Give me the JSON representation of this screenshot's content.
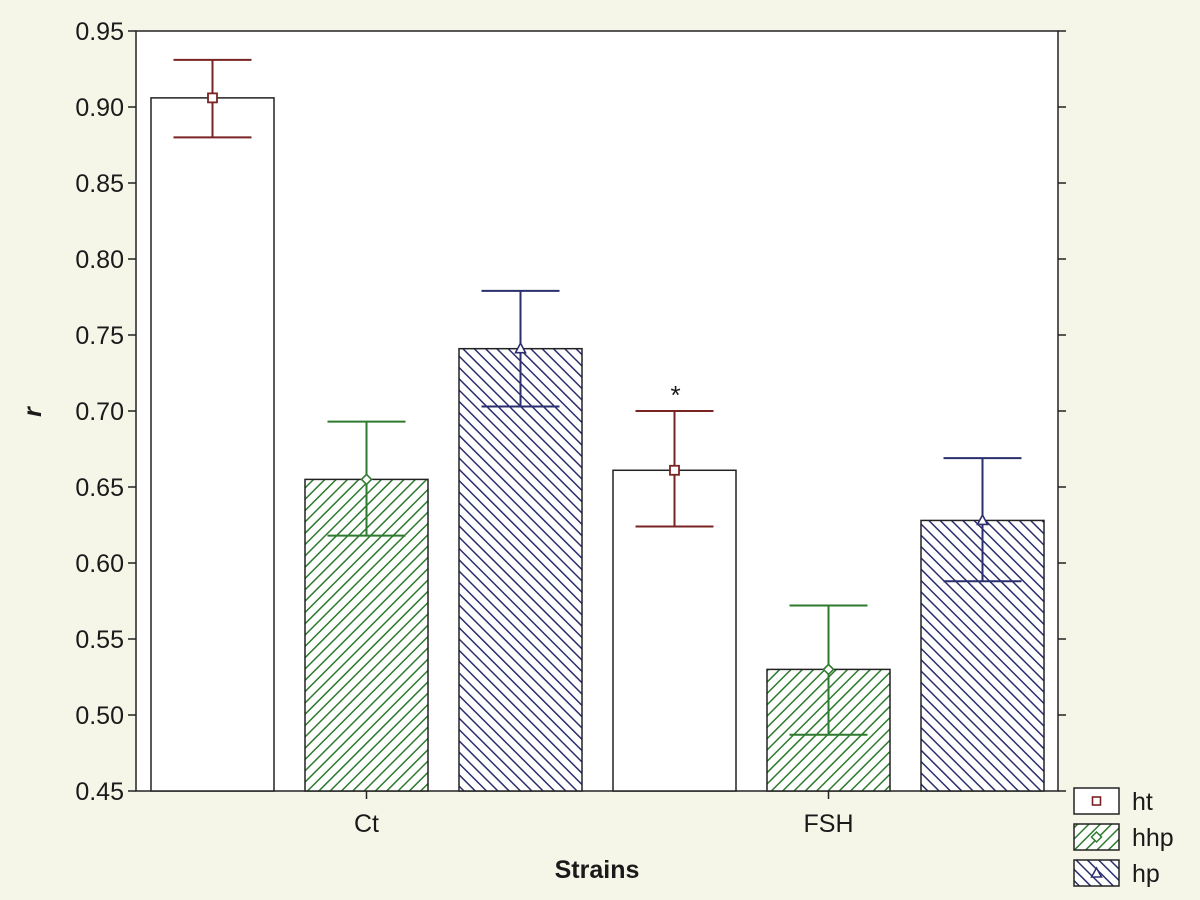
{
  "chart_data": {
    "type": "bar",
    "title": "",
    "xlabel": "Strains",
    "ylabel": "r",
    "ylim": [
      0.45,
      0.95
    ],
    "yticks": [
      "0.45",
      "0.50",
      "0.55",
      "0.60",
      "0.65",
      "0.70",
      "0.75",
      "0.80",
      "0.85",
      "0.90",
      "0.95"
    ],
    "categories": [
      "Ct",
      "FSH"
    ],
    "legend_position": "bottom-right",
    "grid": false,
    "series": [
      {
        "name": "ht",
        "values": [
          0.906,
          0.661
        ],
        "error_low": [
          0.88,
          0.624
        ],
        "error_high": [
          0.931,
          0.7
        ],
        "fill": "white",
        "marker": "square",
        "color": "#7a2323"
      },
      {
        "name": "hhp",
        "values": [
          0.655,
          0.53
        ],
        "error_low": [
          0.618,
          0.487
        ],
        "error_high": [
          0.693,
          0.572
        ],
        "fill": "hatch",
        "marker": "diamond",
        "color": "#2e7a2e"
      },
      {
        "name": "hp",
        "values": [
          0.741,
          0.628
        ],
        "error_low": [
          0.703,
          0.588
        ],
        "error_high": [
          0.779,
          0.669
        ],
        "fill": "hatch",
        "marker": "triangle",
        "color": "#2b2f6e"
      }
    ],
    "annotations": [
      {
        "text": "*",
        "series": "ht",
        "category": "FSH"
      }
    ]
  }
}
